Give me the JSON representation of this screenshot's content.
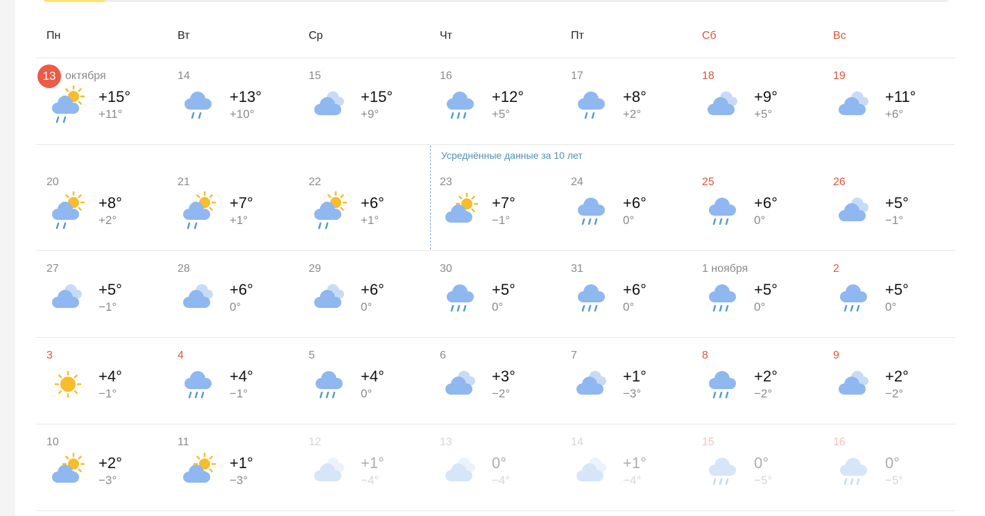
{
  "weekdays": [
    {
      "label": "Пн",
      "weekend": false
    },
    {
      "label": "Вт",
      "weekend": false
    },
    {
      "label": "Ср",
      "weekend": false
    },
    {
      "label": "Чт",
      "weekend": false
    },
    {
      "label": "Пт",
      "weekend": false
    },
    {
      "label": "Сб",
      "weekend": true
    },
    {
      "label": "Вс",
      "weekend": true
    }
  ],
  "average_note": "Усреднённые данные за 10 лет",
  "colors": {
    "weekend": "#e0533f",
    "today": "#eb5b45",
    "cloud": "#8fb7f0",
    "sun": "#f7bd2a",
    "drop": "#5a9bc7",
    "note": "#4f8fb5"
  },
  "rows": [
    [
      {
        "day": "13",
        "month": "октября",
        "today": true,
        "icon": "partly-sunny-rain",
        "max": "+15°",
        "min": "+11°"
      },
      {
        "day": "14",
        "icon": "rain-light",
        "max": "+13°",
        "min": "+10°"
      },
      {
        "day": "15",
        "icon": "cloudy",
        "max": "+15°",
        "min": "+9°"
      },
      {
        "day": "16",
        "icon": "rain",
        "max": "+12°",
        "min": "+5°"
      },
      {
        "day": "17",
        "icon": "rain-light",
        "max": "+8°",
        "min": "+2°"
      },
      {
        "day": "18",
        "weekend": true,
        "icon": "cloudy",
        "max": "+9°",
        "min": "+5°"
      },
      {
        "day": "19",
        "weekend": true,
        "icon": "cloudy",
        "max": "+11°",
        "min": "+6°"
      }
    ],
    [
      {
        "day": "20",
        "icon": "partly-sunny-rain",
        "max": "+8°",
        "min": "+2°"
      },
      {
        "day": "21",
        "icon": "partly-sunny-rain",
        "max": "+7°",
        "min": "+1°"
      },
      {
        "day": "22",
        "icon": "partly-sunny-rain",
        "max": "+6°",
        "min": "+1°"
      },
      {
        "day": "23",
        "icon": "partly-cloudy",
        "max": "+7°",
        "min": "−1°"
      },
      {
        "day": "24",
        "icon": "rain",
        "max": "+6°",
        "min": "0°"
      },
      {
        "day": "25",
        "weekend": true,
        "icon": "rain",
        "max": "+6°",
        "min": "0°"
      },
      {
        "day": "26",
        "weekend": true,
        "icon": "cloudy",
        "max": "+5°",
        "min": "−1°"
      }
    ],
    [
      {
        "day": "27",
        "icon": "cloudy",
        "max": "+5°",
        "min": "−1°"
      },
      {
        "day": "28",
        "icon": "cloudy",
        "max": "+6°",
        "min": "0°"
      },
      {
        "day": "29",
        "icon": "cloudy",
        "max": "+6°",
        "min": "0°"
      },
      {
        "day": "30",
        "icon": "rain",
        "max": "+5°",
        "min": "0°"
      },
      {
        "day": "31",
        "icon": "rain",
        "max": "+6°",
        "min": "0°"
      },
      {
        "day": "1",
        "month": "ноября",
        "icon": "rain",
        "max": "+5°",
        "min": "0°"
      },
      {
        "day": "2",
        "weekend": true,
        "icon": "rain",
        "max": "+5°",
        "min": "0°"
      }
    ],
    [
      {
        "day": "3",
        "weekend": true,
        "icon": "sunny",
        "max": "+4°",
        "min": "−1°"
      },
      {
        "day": "4",
        "weekend": true,
        "icon": "rain",
        "max": "+4°",
        "min": "−1°"
      },
      {
        "day": "5",
        "icon": "rain",
        "max": "+4°",
        "min": "0°"
      },
      {
        "day": "6",
        "icon": "cloudy",
        "max": "+3°",
        "min": "−2°"
      },
      {
        "day": "7",
        "icon": "cloudy",
        "max": "+1°",
        "min": "−3°"
      },
      {
        "day": "8",
        "weekend": true,
        "icon": "rain",
        "max": "+2°",
        "min": "−2°"
      },
      {
        "day": "9",
        "weekend": true,
        "icon": "cloudy",
        "max": "+2°",
        "min": "−2°"
      }
    ],
    [
      {
        "day": "10",
        "icon": "partly-cloudy",
        "max": "+2°",
        "min": "−3°"
      },
      {
        "day": "11",
        "icon": "partly-cloudy",
        "max": "+1°",
        "min": "−3°"
      },
      {
        "day": "12",
        "faded": true,
        "icon": "cloudy",
        "max": "+1°",
        "min": "−4°"
      },
      {
        "day": "13",
        "faded": true,
        "icon": "cloudy",
        "max": "0°",
        "min": "−4°"
      },
      {
        "day": "14",
        "faded": true,
        "icon": "cloudy",
        "max": "+1°",
        "min": "−4°"
      },
      {
        "day": "15",
        "weekend": true,
        "faded": true,
        "icon": "rain",
        "max": "0°",
        "min": "−5°"
      },
      {
        "day": "16",
        "weekend": true,
        "faded": true,
        "icon": "rain",
        "max": "0°",
        "min": "−5°"
      }
    ]
  ]
}
